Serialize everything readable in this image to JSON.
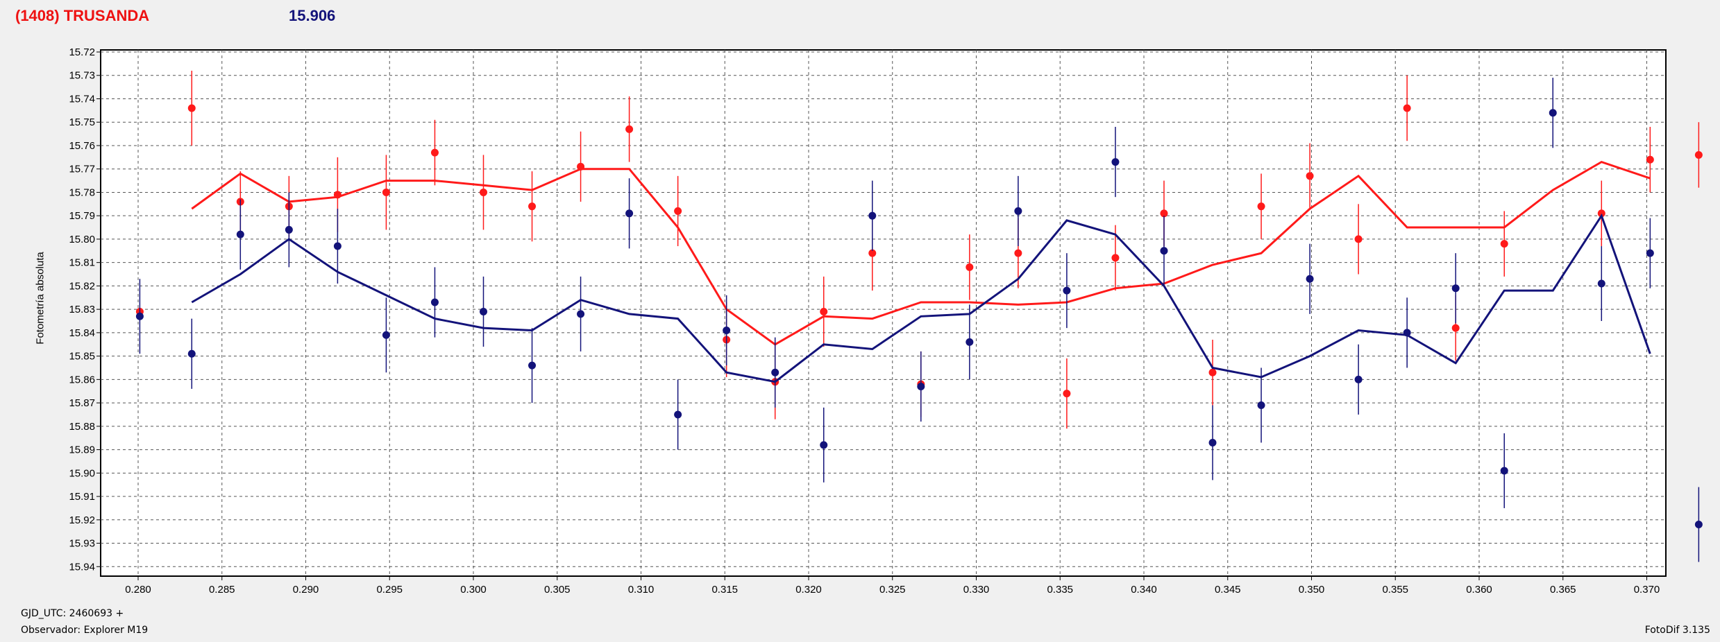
{
  "header": {
    "title": "(1408) TRUSANDA",
    "magnitude": "15.906"
  },
  "footer": {
    "gjd": "GJD_UTC: 2460693 +",
    "observer": "Observador: Explorer M19",
    "version": "FotoDif 3.135"
  },
  "chart_data": {
    "type": "scatter",
    "title": "",
    "ylabel": "Fotometría absoluta",
    "xlabel": "",
    "xlim": [
      0.2795,
      0.3733
    ],
    "ylim": [
      15.72,
      15.9475
    ],
    "y_inverted": true,
    "grid": true,
    "x_ticks": [
      "0.280",
      "0.285",
      "0.290",
      "0.295",
      "0.300",
      "0.305",
      "0.310",
      "0.315",
      "0.320",
      "0.325",
      "0.330",
      "0.335",
      "0.340",
      "0.345",
      "0.350",
      "0.355",
      "0.360",
      "0.365",
      "0.370"
    ],
    "y_ticks": [
      "15.72",
      "15.73",
      "15.74",
      "15.75",
      "15.76",
      "15.77",
      "15.78",
      "15.79",
      "15.80",
      "15.81",
      "15.82",
      "15.83",
      "15.84",
      "15.85",
      "15.86",
      "15.87",
      "15.88",
      "15.89",
      "15.90",
      "15.91",
      "15.92",
      "15.93",
      "15.94"
    ],
    "colors": {
      "red": "#ff1a1a",
      "blue": "#13137a"
    },
    "series": [
      {
        "color": "red",
        "points": [
          {
            "x": 0.2801,
            "y": 15.831,
            "err": 0.0
          },
          {
            "x": 0.2832,
            "y": 15.744,
            "err": 0.016
          },
          {
            "x": 0.2861,
            "y": 15.784,
            "err": 0.013
          },
          {
            "x": 0.289,
            "y": 15.786,
            "err": 0.013
          },
          {
            "x": 0.2919,
            "y": 15.781,
            "err": 0.016
          },
          {
            "x": 0.2948,
            "y": 15.78,
            "err": 0.016
          },
          {
            "x": 0.2977,
            "y": 15.763,
            "err": 0.014
          },
          {
            "x": 0.3006,
            "y": 15.78,
            "err": 0.016
          },
          {
            "x": 0.3035,
            "y": 15.786,
            "err": 0.015
          },
          {
            "x": 0.3064,
            "y": 15.769,
            "err": 0.015
          },
          {
            "x": 0.3093,
            "y": 15.753,
            "err": 0.014
          },
          {
            "x": 0.3122,
            "y": 15.788,
            "err": 0.015
          },
          {
            "x": 0.3151,
            "y": 15.843,
            "err": 0.016
          },
          {
            "x": 0.318,
            "y": 15.861,
            "err": 0.016
          },
          {
            "x": 0.3209,
            "y": 15.831,
            "err": 0.015
          },
          {
            "x": 0.3238,
            "y": 15.806,
            "err": 0.016
          },
          {
            "x": 0.3267,
            "y": 15.862,
            "err": 0.014
          },
          {
            "x": 0.3296,
            "y": 15.812,
            "err": 0.014
          },
          {
            "x": 0.3325,
            "y": 15.806,
            "err": 0.015
          },
          {
            "x": 0.3354,
            "y": 15.866,
            "err": 0.015
          },
          {
            "x": 0.3383,
            "y": 15.808,
            "err": 0.014
          },
          {
            "x": 0.3412,
            "y": 15.789,
            "err": 0.014
          },
          {
            "x": 0.3441,
            "y": 15.857,
            "err": 0.014
          },
          {
            "x": 0.347,
            "y": 15.786,
            "err": 0.014
          },
          {
            "x": 0.3499,
            "y": 15.773,
            "err": 0.014
          },
          {
            "x": 0.3528,
            "y": 15.8,
            "err": 0.015
          },
          {
            "x": 0.3557,
            "y": 15.744,
            "err": 0.014
          },
          {
            "x": 0.3586,
            "y": 15.838,
            "err": 0.014
          },
          {
            "x": 0.3615,
            "y": 15.802,
            "err": 0.014
          },
          {
            "x": 0.3673,
            "y": 15.789,
            "err": 0.014
          },
          {
            "x": 0.3702,
            "y": 15.766,
            "err": 0.014
          },
          {
            "x": 0.3731,
            "y": 15.764,
            "err": 0.014
          }
        ],
        "line_x": [
          0.2832,
          0.2861,
          0.289,
          0.2919,
          0.2948,
          0.2977,
          0.3006,
          0.3035,
          0.3064,
          0.3093,
          0.3122,
          0.3151,
          0.318,
          0.3209,
          0.3238,
          0.3267,
          0.3296,
          0.3325,
          0.3354,
          0.3383,
          0.3412,
          0.3441,
          0.347,
          0.3499,
          0.3528,
          0.3557,
          0.3586,
          0.3615,
          0.3644,
          0.3673,
          0.3702
        ],
        "line_y": [
          15.787,
          15.772,
          15.784,
          15.782,
          15.775,
          15.775,
          15.777,
          15.779,
          15.77,
          15.77,
          15.795,
          15.83,
          15.845,
          15.833,
          15.834,
          15.827,
          15.827,
          15.828,
          15.827,
          15.821,
          15.819,
          15.811,
          15.806,
          15.787,
          15.773,
          15.795,
          15.795,
          15.795,
          15.779,
          15.767,
          15.774
        ]
      },
      {
        "color": "blue",
        "points": [
          {
            "x": 0.2801,
            "y": 15.833,
            "err": 0.016
          },
          {
            "x": 0.2832,
            "y": 15.849,
            "err": 0.015
          },
          {
            "x": 0.2861,
            "y": 15.798,
            "err": 0.015
          },
          {
            "x": 0.289,
            "y": 15.796,
            "err": 0.016
          },
          {
            "x": 0.2919,
            "y": 15.803,
            "err": 0.016
          },
          {
            "x": 0.2948,
            "y": 15.841,
            "err": 0.016
          },
          {
            "x": 0.2977,
            "y": 15.827,
            "err": 0.015
          },
          {
            "x": 0.3006,
            "y": 15.831,
            "err": 0.015
          },
          {
            "x": 0.3035,
            "y": 15.854,
            "err": 0.016
          },
          {
            "x": 0.3064,
            "y": 15.832,
            "err": 0.016
          },
          {
            "x": 0.3093,
            "y": 15.789,
            "err": 0.015
          },
          {
            "x": 0.3122,
            "y": 15.875,
            "err": 0.015
          },
          {
            "x": 0.3151,
            "y": 15.839,
            "err": 0.015
          },
          {
            "x": 0.318,
            "y": 15.857,
            "err": 0.015
          },
          {
            "x": 0.3209,
            "y": 15.888,
            "err": 0.016
          },
          {
            "x": 0.3238,
            "y": 15.79,
            "err": 0.015
          },
          {
            "x": 0.3267,
            "y": 15.863,
            "err": 0.015
          },
          {
            "x": 0.3296,
            "y": 15.844,
            "err": 0.016
          },
          {
            "x": 0.3325,
            "y": 15.788,
            "err": 0.015
          },
          {
            "x": 0.3354,
            "y": 15.822,
            "err": 0.016
          },
          {
            "x": 0.3383,
            "y": 15.767,
            "err": 0.015
          },
          {
            "x": 0.3412,
            "y": 15.805,
            "err": 0.015
          },
          {
            "x": 0.3441,
            "y": 15.887,
            "err": 0.016
          },
          {
            "x": 0.347,
            "y": 15.871,
            "err": 0.016
          },
          {
            "x": 0.3499,
            "y": 15.817,
            "err": 0.015
          },
          {
            "x": 0.3528,
            "y": 15.86,
            "err": 0.015
          },
          {
            "x": 0.3557,
            "y": 15.84,
            "err": 0.015
          },
          {
            "x": 0.3586,
            "y": 15.821,
            "err": 0.015
          },
          {
            "x": 0.3615,
            "y": 15.899,
            "err": 0.016
          },
          {
            "x": 0.3644,
            "y": 15.746,
            "err": 0.015
          },
          {
            "x": 0.3673,
            "y": 15.819,
            "err": 0.016
          },
          {
            "x": 0.3702,
            "y": 15.806,
            "err": 0.015
          },
          {
            "x": 0.3731,
            "y": 15.922,
            "err": 0.016
          }
        ],
        "line_x": [
          0.2832,
          0.2861,
          0.289,
          0.2919,
          0.2948,
          0.2977,
          0.3006,
          0.3035,
          0.3064,
          0.3093,
          0.3122,
          0.3151,
          0.318,
          0.3209,
          0.3238,
          0.3267,
          0.3296,
          0.3325,
          0.3354,
          0.3383,
          0.3412,
          0.3441,
          0.347,
          0.3499,
          0.3528,
          0.3557,
          0.3586,
          0.3615,
          0.3644,
          0.3673,
          0.3702
        ],
        "line_y": [
          15.827,
          15.815,
          15.8,
          15.814,
          15.824,
          15.834,
          15.838,
          15.839,
          15.826,
          15.832,
          15.834,
          15.857,
          15.861,
          15.845,
          15.847,
          15.833,
          15.832,
          15.817,
          15.792,
          15.798,
          15.82,
          15.855,
          15.859,
          15.85,
          15.839,
          15.841,
          15.853,
          15.822,
          15.822,
          15.79,
          15.849
        ]
      }
    ]
  }
}
